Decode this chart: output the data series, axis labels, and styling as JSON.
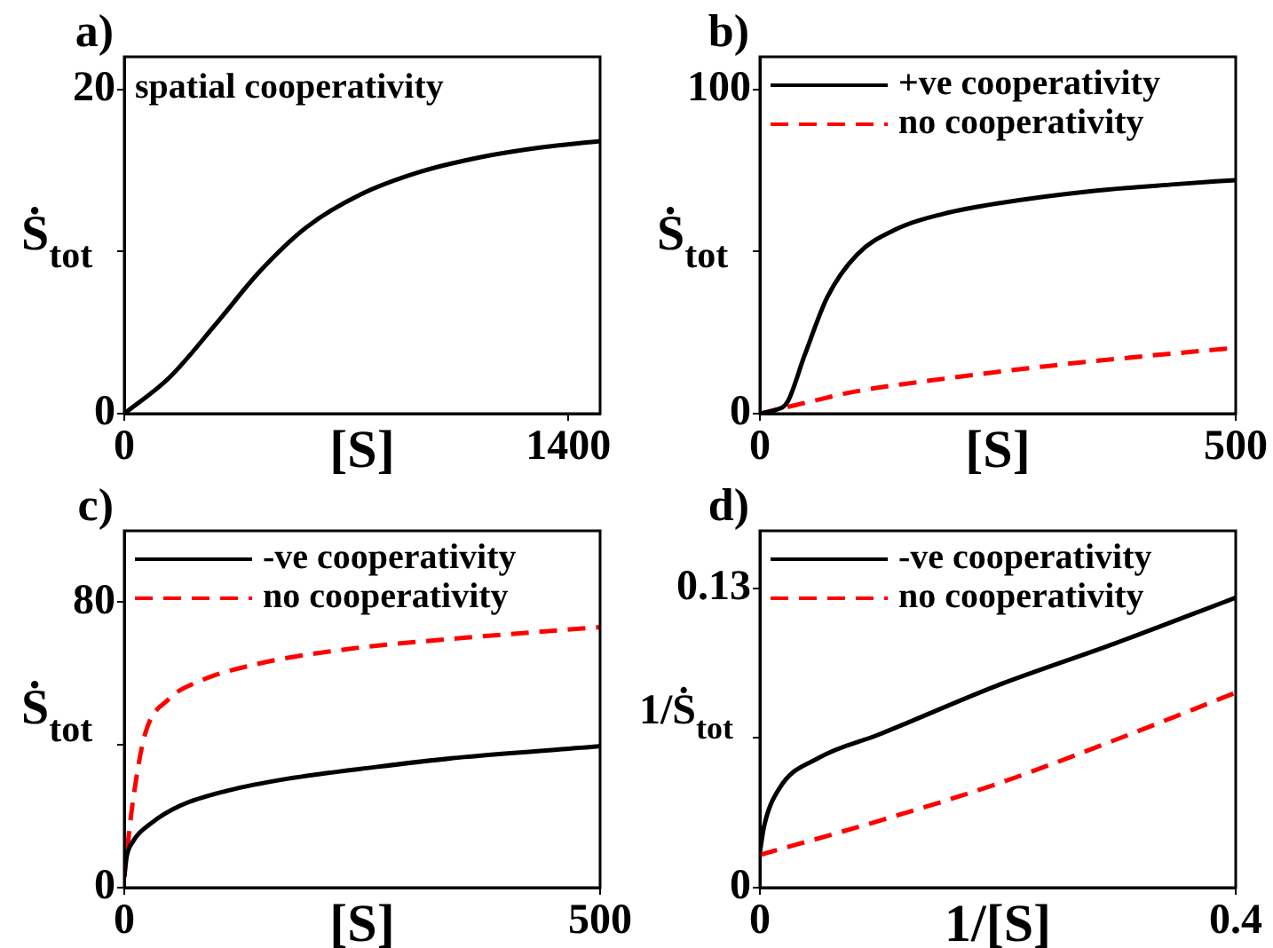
{
  "chart_data": [
    {
      "type": "line",
      "title": "a)",
      "xlabel": "[S]",
      "ylabel": "Ṡ$_{tot}$",
      "annotations": [
        "spatial cooperativity"
      ],
      "xlim": [
        0,
        1500
      ],
      "xticks": [
        0,
        1400
      ],
      "ylim": [
        0,
        22
      ],
      "yticks": [
        0,
        {
          "value": 10,
          "label": null
        },
        20
      ],
      "grid": false,
      "legend": false,
      "marker": "none",
      "series": [
        {
          "color": "#000000",
          "line_style": "solid",
          "x": [
            0,
            141,
            292,
            424,
            575,
            744,
            932,
            1121,
            1310,
            1500
          ],
          "values": [
            0,
            2.2,
            5.6,
            8.7,
            11.5,
            13.5,
            14.9,
            15.8,
            16.4,
            16.8
          ]
        }
      ]
    },
    {
      "type": "line",
      "title": "b)",
      "xlabel": "[S]",
      "ylabel": "Ṡ$_{tot}$",
      "xlim": [
        0,
        500
      ],
      "xticks": [
        0,
        500
      ],
      "ylim": [
        0,
        110
      ],
      "yticks": [
        0,
        {
          "value": 50,
          "label": null
        },
        100
      ],
      "grid": false,
      "legend": "top",
      "marker": "none",
      "series": [
        {
          "name": "+ve cooperativity",
          "color": "#000000",
          "line_style": "solid",
          "x": [
            0,
            15,
            29,
            47,
            71,
            102,
            144,
            193,
            254,
            345,
            436,
            500
          ],
          "values": [
            0,
            1,
            3.6,
            18,
            36,
            49,
            57,
            61.6,
            65,
            68.5,
            70.7,
            72
          ]
        },
        {
          "name": "no cooperativity",
          "color": "#ff0000",
          "line_style": "dashed",
          "x": [
            0,
            50,
            100,
            200,
            300,
            400,
            500
          ],
          "values": [
            0,
            3.5,
            6.8,
            11,
            14.6,
            17.6,
            20.3
          ]
        }
      ]
    },
    {
      "type": "line",
      "title": "c)",
      "xlabel": "[S]",
      "ylabel": "Ṡ$_{tot}$",
      "xlim": [
        0,
        500
      ],
      "xticks": [
        0,
        500
      ],
      "ylim": [
        0,
        100
      ],
      "yticks": [
        0,
        {
          "value": 40,
          "label": null
        },
        80
      ],
      "grid": false,
      "legend": "top",
      "marker": "none",
      "series": [
        {
          "name": "-ve cooperativity",
          "color": "#000000",
          "line_style": "solid",
          "x": [
            0,
            2,
            9.3,
            28,
            59,
            109,
            171,
            264,
            357,
            500
          ],
          "values": [
            3,
            8,
            13,
            18,
            23,
            27.2,
            30.5,
            33.8,
            36.6,
            39.6
          ]
        },
        {
          "name": "no cooperativity",
          "color": "#ff0000",
          "line_style": "dashed",
          "x": [
            0,
            2,
            9.3,
            21.7,
            46.6,
            77.6,
            140,
            233,
            357,
            500
          ],
          "values": [
            3,
            8,
            24.7,
            42.9,
            52.8,
            57.7,
            62.7,
            66.8,
            70,
            73
          ]
        }
      ]
    },
    {
      "type": "line",
      "title": "d)",
      "xlabel": "1/[S]",
      "ylabel": "1/Ṡ$_{tot}$",
      "xlim": [
        0,
        0.4
      ],
      "xticks": [
        0,
        0.4
      ],
      "ylim": [
        0,
        0.155
      ],
      "yticks": [
        0,
        {
          "value": 0.065,
          "label": null
        },
        0.13
      ],
      "grid": false,
      "legend": "top",
      "marker": "none",
      "series": [
        {
          "name": "-ve cooperativity",
          "color": "#000000",
          "line_style": "solid",
          "x": [
            0,
            0.0035,
            0.016,
            0.05,
            0.1,
            0.199,
            0.298,
            0.4
          ],
          "values": [
            0.0154,
            0.0266,
            0.0428,
            0.0565,
            0.0665,
            0.0877,
            0.106,
            0.126
          ]
        },
        {
          "name": "no cooperativity",
          "color": "#ff0000",
          "line_style": "dashed",
          "x": [
            0,
            0.1,
            0.199,
            0.298,
            0.4
          ],
          "values": [
            0.0142,
            0.029,
            0.045,
            0.064,
            0.0847
          ]
        }
      ]
    }
  ]
}
